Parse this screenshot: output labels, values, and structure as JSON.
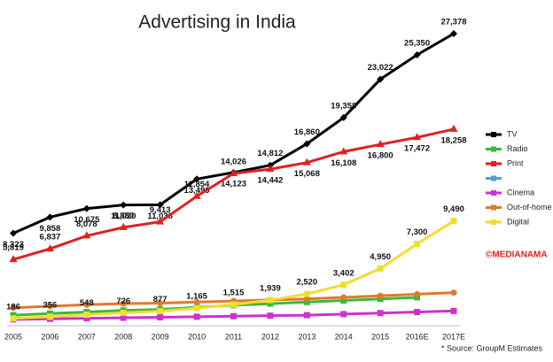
{
  "chart_data": {
    "type": "line",
    "title": "Advertising in India",
    "categories": [
      "2005",
      "2006",
      "2007",
      "2008",
      "2009",
      "2010",
      "2011",
      "2012",
      "2013",
      "2014",
      "2015",
      "2016E",
      "2017E"
    ],
    "series": [
      {
        "name": "TV",
        "color": "#000000",
        "values": [
          8323,
          9858,
          10675,
          11020,
          11038,
          13499,
          14123,
          14812,
          16860,
          19358,
          23022,
          25350,
          27378
        ]
      },
      {
        "name": "Radio",
        "color": "#3cb83c",
        "values": [
          500,
          650,
          800,
          950,
          1050,
          1250,
          1450,
          1600,
          1750,
          1900,
          2050,
          2200,
          null
        ]
      },
      {
        "name": "Print",
        "color": "#e02020",
        "values": [
          5819,
          6837,
          8078,
          8880,
          9413,
          11854,
          14026,
          14442,
          15068,
          16108,
          16800,
          17472,
          18258
        ]
      },
      {
        "name": null,
        "color": "#4aa3d8",
        "values": [
          null,
          null,
          null,
          null,
          null,
          null,
          null,
          null,
          null,
          null,
          null,
          null,
          null
        ]
      },
      {
        "name": "Cinema",
        "color": "#cc33cc",
        "values": [
          100,
          150,
          200,
          250,
          300,
          350,
          400,
          450,
          500,
          600,
          700,
          800,
          900
        ]
      },
      {
        "name": "Out-of-home",
        "color": "#e07a2a",
        "values": [
          1200,
          1350,
          1500,
          1600,
          1650,
          1750,
          1850,
          1950,
          2050,
          2200,
          2350,
          2500,
          2650
        ]
      },
      {
        "name": "Digital",
        "color": "#f0de30",
        "values": [
          186,
          356,
          548,
          726,
          877,
          1165,
          1515,
          1939,
          2520,
          3402,
          4950,
          7300,
          9490
        ]
      }
    ],
    "source": "* Source: GroupM Estimates",
    "brand": "©MEDIANAMA"
  }
}
